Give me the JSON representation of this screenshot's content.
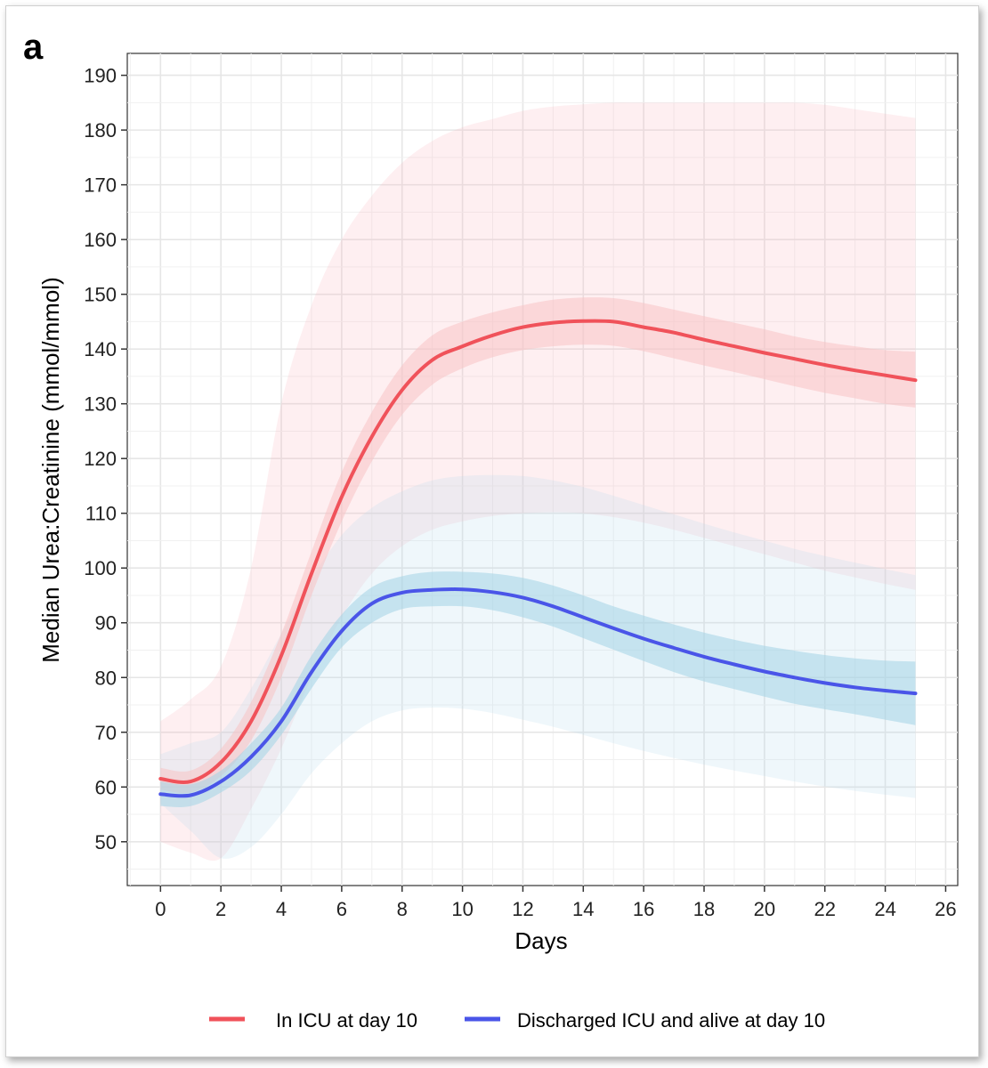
{
  "panel_label": "a",
  "legend": [
    {
      "label": "In ICU at day 10",
      "color": "#f0525a"
    },
    {
      "label": "Discharged ICU and alive at day 10",
      "color": "#4a55e8"
    }
  ],
  "chart_data": {
    "type": "line",
    "title": "",
    "xlabel": "Days",
    "ylabel": "Median Urea:Creatinine (mmol/mmol)",
    "xlim": [
      -1.1,
      26.4
    ],
    "ylim": [
      42,
      194
    ],
    "xticks": [
      0,
      2,
      4,
      6,
      8,
      10,
      12,
      14,
      16,
      18,
      20,
      22,
      24,
      26
    ],
    "yticks": [
      50,
      60,
      70,
      80,
      90,
      100,
      110,
      120,
      130,
      140,
      150,
      160,
      170,
      180,
      190
    ],
    "grid": true,
    "legend_position": "bottom",
    "series": [
      {
        "name": "In ICU at day 10",
        "color": "#f0525a",
        "x": [
          0,
          1,
          2,
          3,
          4,
          5,
          6,
          7,
          8,
          9,
          10,
          11,
          12,
          13,
          14,
          15,
          16,
          17,
          18,
          19,
          20,
          21,
          22,
          23,
          24,
          25
        ],
        "y": [
          61.5,
          61,
          64.5,
          72,
          84,
          99,
          113,
          124,
          132.5,
          138,
          140.5,
          142.5,
          144,
          144.8,
          145.1,
          145,
          144,
          143,
          141.7,
          140.5,
          139.3,
          138.2,
          137.1,
          136.1,
          135.2,
          134.3
        ],
        "ci_narrow_lower": [
          59.5,
          59,
          62,
          68.5,
          80,
          95,
          108.5,
          119.5,
          128,
          133.5,
          136.5,
          138.5,
          139.8,
          140.5,
          140.8,
          140.6,
          139.6,
          138.3,
          137,
          135.8,
          134.5,
          133.2,
          132,
          131,
          130,
          129.3
        ],
        "ci_narrow_upper": [
          63.5,
          63,
          67,
          75.5,
          88,
          103,
          117.5,
          128.5,
          137,
          142.5,
          145,
          146.7,
          148,
          149,
          149.4,
          149.3,
          148.4,
          147.2,
          146,
          144.8,
          143.6,
          142.3,
          141.3,
          140.5,
          139.8,
          139.5
        ],
        "ci_wide_lower": [
          50,
          48,
          47,
          56,
          67,
          80,
          91,
          99,
          104,
          107,
          108.5,
          109.5,
          110,
          110.2,
          110,
          109.3,
          108.3,
          107,
          105.5,
          104,
          102.5,
          101,
          99.5,
          98.3,
          97.1,
          96
        ],
        "ci_wide_upper": [
          72,
          76,
          82,
          100,
          130,
          148,
          160,
          168,
          174,
          178,
          180.5,
          182,
          183.5,
          184.3,
          184.7,
          185,
          185,
          185,
          185,
          185,
          185,
          185,
          184.6,
          183.8,
          183,
          182.2
        ]
      },
      {
        "name": "Discharged ICU and alive at day 10",
        "color": "#4a55e8",
        "x": [
          0,
          1,
          2,
          3,
          4,
          5,
          6,
          7,
          8,
          9,
          10,
          11,
          12,
          13,
          14,
          15,
          16,
          17,
          18,
          19,
          20,
          21,
          22,
          23,
          24,
          25
        ],
        "y": [
          58.7,
          58.5,
          61,
          65.5,
          72,
          81,
          88.5,
          93.5,
          95.5,
          96,
          96.1,
          95.6,
          94.6,
          93,
          91,
          89,
          87.1,
          85.4,
          83.8,
          82.4,
          81.1,
          80,
          79,
          78.2,
          77.6,
          77.1
        ],
        "ci_narrow_lower": [
          56.5,
          56.5,
          59,
          63,
          69.5,
          78,
          85.5,
          90,
          92.5,
          93,
          93,
          92.3,
          91,
          89.3,
          87.2,
          85.1,
          83,
          81,
          79.3,
          77.9,
          76.5,
          75.2,
          74.2,
          73.3,
          72.3,
          71.3
        ],
        "ci_narrow_upper": [
          61,
          60.5,
          63,
          68,
          74.5,
          84,
          91.5,
          96.5,
          98.5,
          99.3,
          99.3,
          99,
          98.2,
          96.8,
          95,
          93,
          91.3,
          89.7,
          88.2,
          86.9,
          85.8,
          84.9,
          84.1,
          83.5,
          83.1,
          82.9
        ],
        "ci_wide_lower": [
          57,
          52,
          47,
          49,
          55,
          62.5,
          68,
          72,
          74,
          74.5,
          74.3,
          73.5,
          72.3,
          71,
          69.5,
          68,
          66.6,
          65.3,
          64.1,
          63,
          62,
          61,
          60.1,
          59.3,
          58.6,
          58
        ],
        "ci_wide_upper": [
          66,
          68,
          70,
          78,
          88,
          98,
          106,
          111,
          114,
          116,
          116.8,
          117,
          116.8,
          116,
          114.8,
          113.2,
          111.5,
          109.8,
          108.1,
          106.5,
          105,
          103.5,
          102.2,
          101,
          99.8,
          98.7
        ]
      }
    ]
  }
}
